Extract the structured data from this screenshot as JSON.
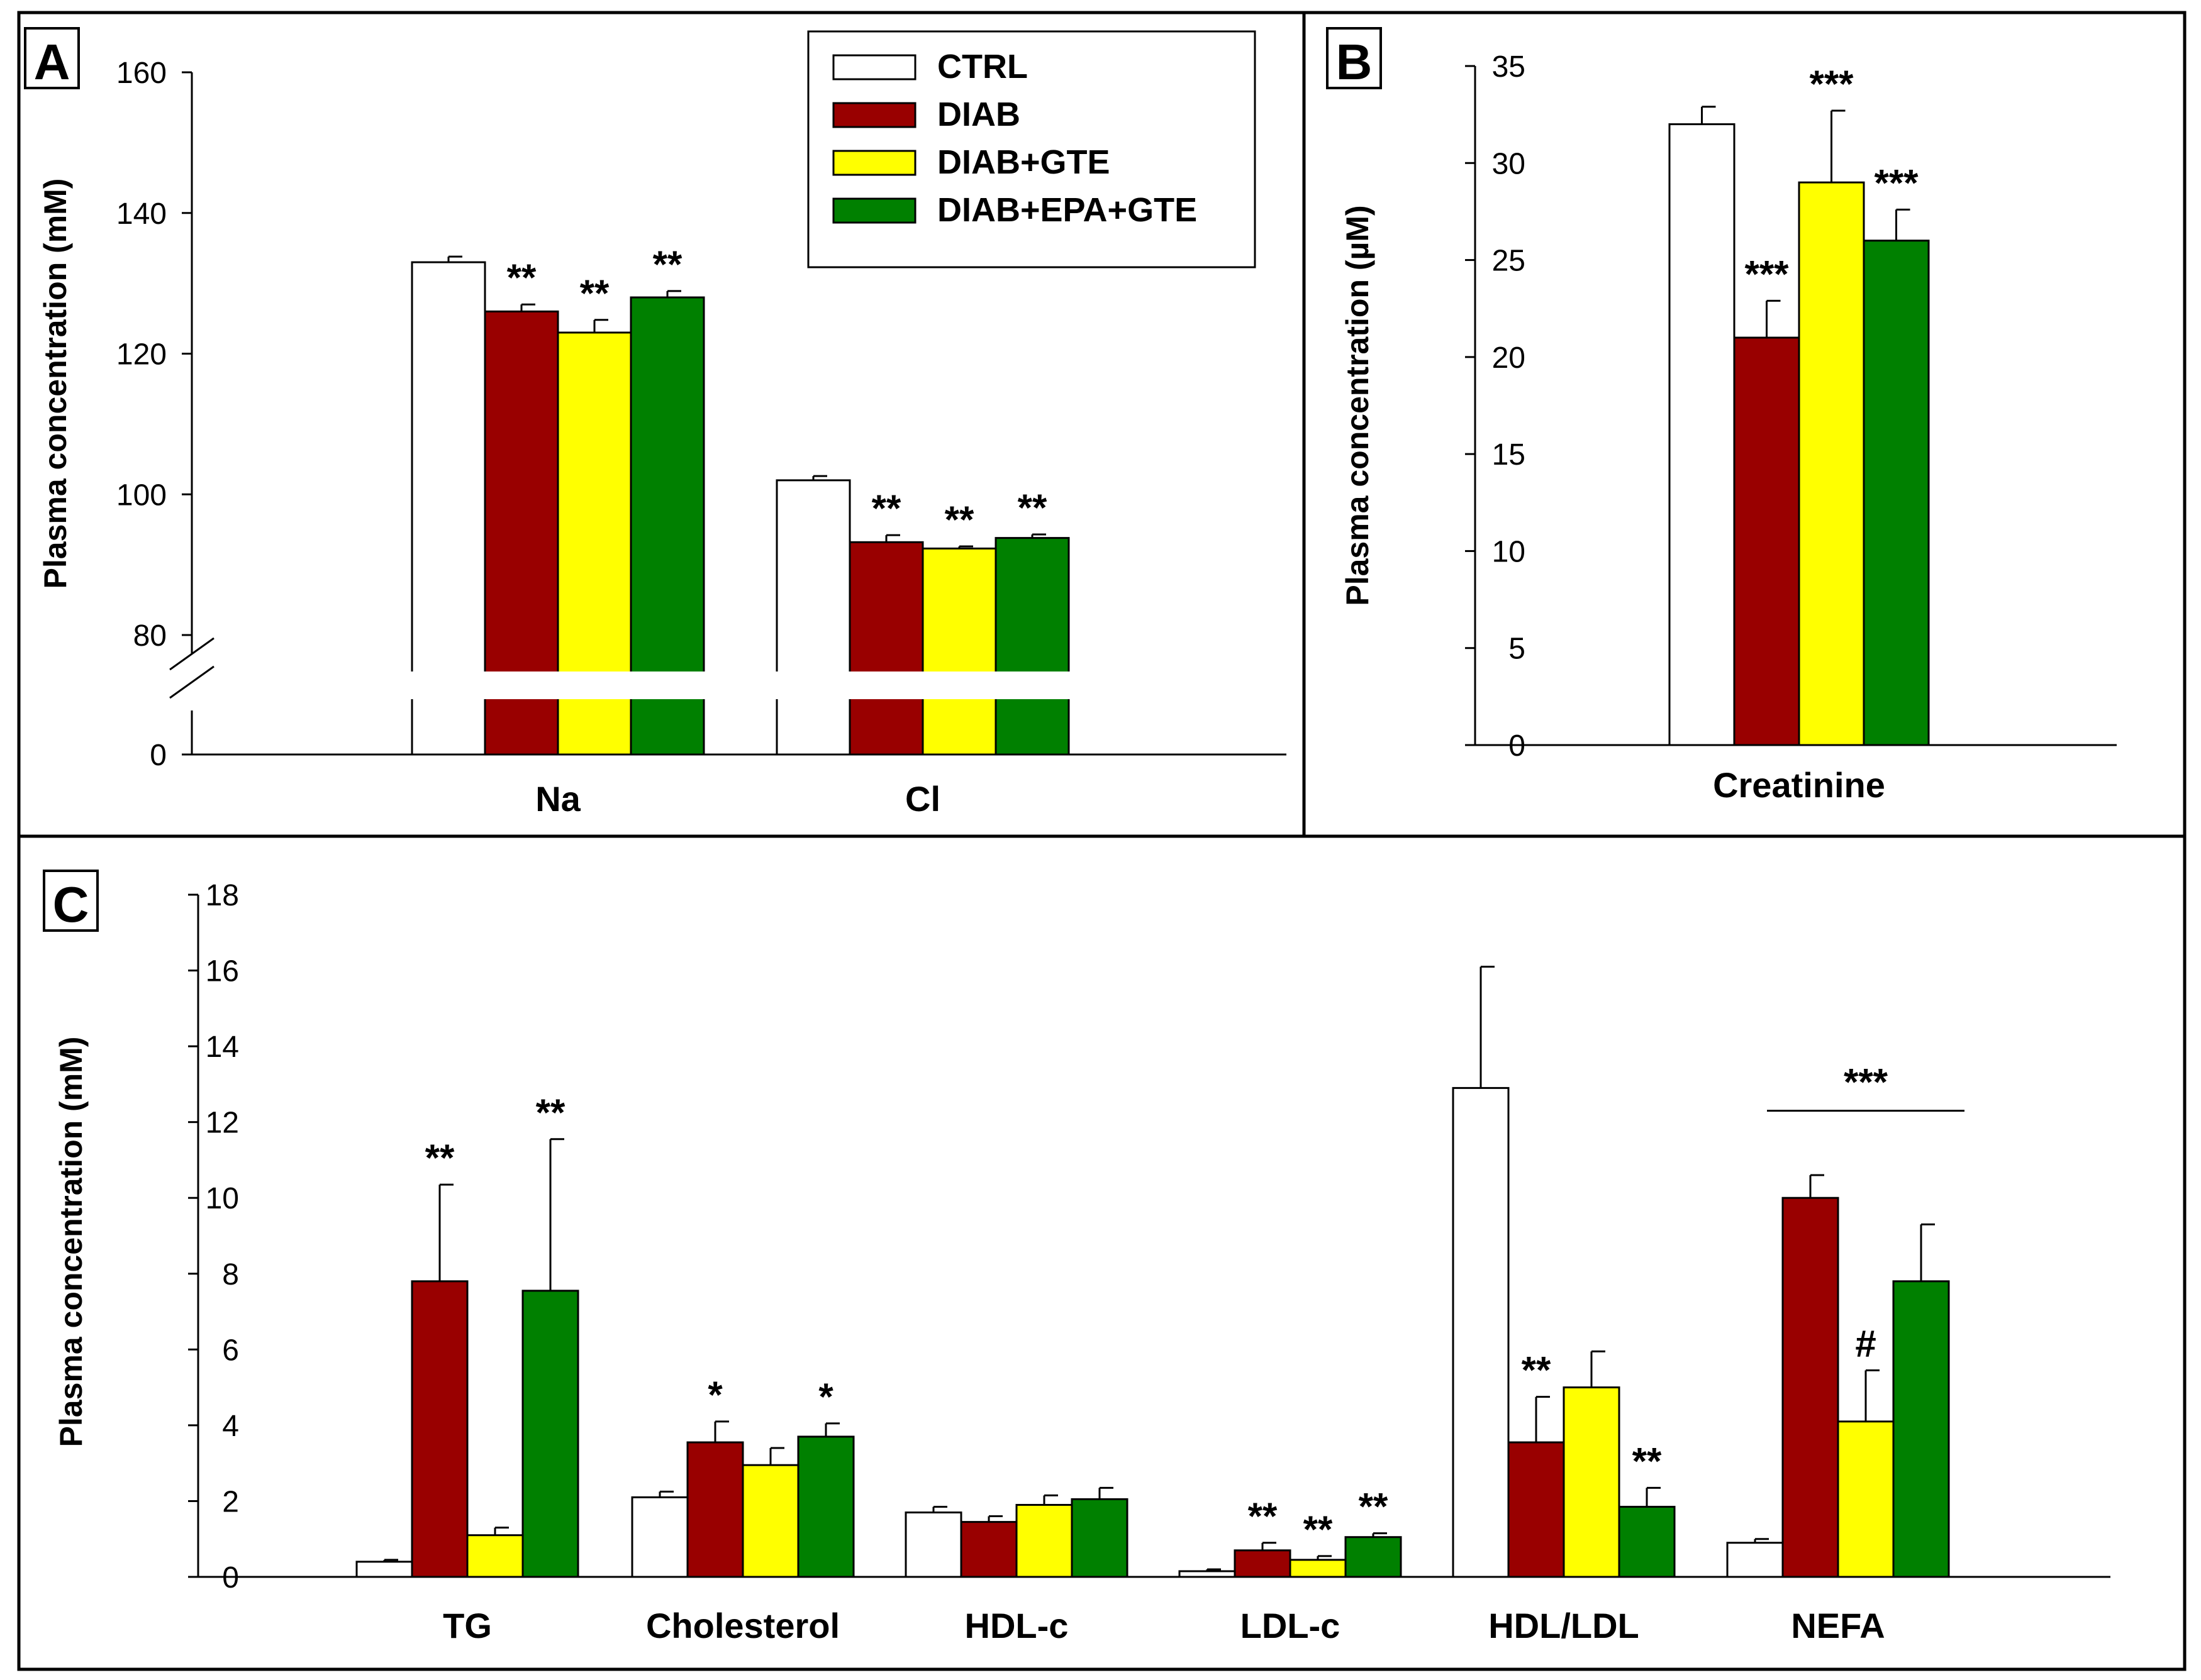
{
  "colors": {
    "CTRL": "#ffffff",
    "DIAB": "#990000",
    "DIAB+GTE": "#ffff00",
    "DIAB+EPA+GTE": "#008000"
  },
  "legend": [
    "CTRL",
    "DIAB",
    "DIAB+GTE",
    "DIAB+EPA+GTE"
  ],
  "chart_data": [
    {
      "panel": "A",
      "type": "bar",
      "ylabel": "Plasma concentration (mM)",
      "ylim": [
        80,
        160
      ],
      "axis_break": true,
      "yticks": [
        "0",
        "80",
        "100",
        "120",
        "140",
        "160"
      ],
      "categories": [
        "Na",
        "Cl"
      ],
      "series": [
        {
          "name": "CTRL",
          "values": [
            133,
            102
          ],
          "errors": [
            0.8,
            0.6
          ]
        },
        {
          "name": "DIAB",
          "values": [
            126,
            93.2
          ],
          "errors": [
            1,
            1
          ]
        },
        {
          "name": "DIAB+GTE",
          "values": [
            123,
            92.3
          ],
          "errors": [
            1.8,
            0.3
          ]
        },
        {
          "name": "DIAB+EPA+GTE",
          "values": [
            128,
            93.8
          ],
          "errors": [
            0.9,
            0.5
          ]
        }
      ],
      "significance": [
        {
          "category": 0,
          "series": 1,
          "label": "**"
        },
        {
          "category": 0,
          "series": 2,
          "label": "**"
        },
        {
          "category": 0,
          "series": 3,
          "label": "**"
        },
        {
          "category": 1,
          "series": 1,
          "label": "**"
        },
        {
          "category": 1,
          "series": 2,
          "label": "**"
        },
        {
          "category": 1,
          "series": 3,
          "label": "**"
        }
      ]
    },
    {
      "panel": "B",
      "type": "bar",
      "ylabel": "Plasma concentration (µM)",
      "ylim": [
        0,
        35
      ],
      "yticks": [
        "0",
        "5",
        "10",
        "15",
        "20",
        "25",
        "30",
        "35"
      ],
      "categories": [
        "Creatinine"
      ],
      "series": [
        {
          "name": "CTRL",
          "values": [
            32
          ],
          "errors": [
            0.9
          ]
        },
        {
          "name": "DIAB",
          "values": [
            21
          ],
          "errors": [
            1.9
          ]
        },
        {
          "name": "DIAB+GTE",
          "values": [
            29
          ],
          "errors": [
            3.7
          ]
        },
        {
          "name": "DIAB+EPA+GTE",
          "values": [
            26
          ],
          "errors": [
            1.6
          ]
        }
      ],
      "significance": [
        {
          "category": 0,
          "series": 1,
          "label": "***"
        },
        {
          "category": 0,
          "series": 2,
          "label": "***"
        },
        {
          "category": 0,
          "series": 3,
          "label": "***"
        }
      ]
    },
    {
      "panel": "C",
      "type": "bar",
      "ylabel": "Plasma concentration (mM)",
      "ylim": [
        0,
        18
      ],
      "yticks": [
        "0",
        "2",
        "4",
        "6",
        "8",
        "10",
        "12",
        "14",
        "16",
        "18"
      ],
      "categories": [
        "TG",
        "Cholesterol",
        "HDL-c",
        "LDL-c",
        "HDL/LDL",
        "NEFA"
      ],
      "series": [
        {
          "name": "CTRL",
          "values": [
            0.4,
            2.1,
            1.7,
            0.15,
            12.9,
            0.9
          ],
          "errors": [
            0.05,
            0.15,
            0.15,
            0.05,
            3.2,
            0.1
          ]
        },
        {
          "name": "DIAB",
          "values": [
            7.8,
            3.55,
            1.45,
            0.7,
            3.55,
            10
          ],
          "errors": [
            2.55,
            0.55,
            0.15,
            0.2,
            1.2,
            0.6
          ]
        },
        {
          "name": "DIAB+GTE",
          "values": [
            1.1,
            2.95,
            1.9,
            0.45,
            5,
            4.1
          ],
          "errors": [
            0.2,
            0.45,
            0.25,
            0.1,
            0.95,
            1.35
          ]
        },
        {
          "name": "DIAB+EPA+GTE",
          "values": [
            7.55,
            3.7,
            2.05,
            1.05,
            1.85,
            7.8
          ],
          "errors": [
            4,
            0.35,
            0.3,
            0.1,
            0.5,
            1.5
          ]
        }
      ],
      "significance": [
        {
          "category": 0,
          "series": 1,
          "label": "**"
        },
        {
          "category": 0,
          "series": 3,
          "label": "**"
        },
        {
          "category": 1,
          "series": 1,
          "label": "*"
        },
        {
          "category": 1,
          "series": 3,
          "label": "*"
        },
        {
          "category": 3,
          "series": 1,
          "label": "**"
        },
        {
          "category": 3,
          "series": 2,
          "label": "**"
        },
        {
          "category": 3,
          "series": 3,
          "label": "**"
        },
        {
          "category": 4,
          "series": 1,
          "label": "**"
        },
        {
          "category": 4,
          "series": 3,
          "label": "**"
        },
        {
          "category": 5,
          "series": 2,
          "label": "#"
        }
      ],
      "group_significance": [
        {
          "category": 5,
          "from_series": 1,
          "to_series": 3,
          "label": "***"
        }
      ]
    }
  ]
}
